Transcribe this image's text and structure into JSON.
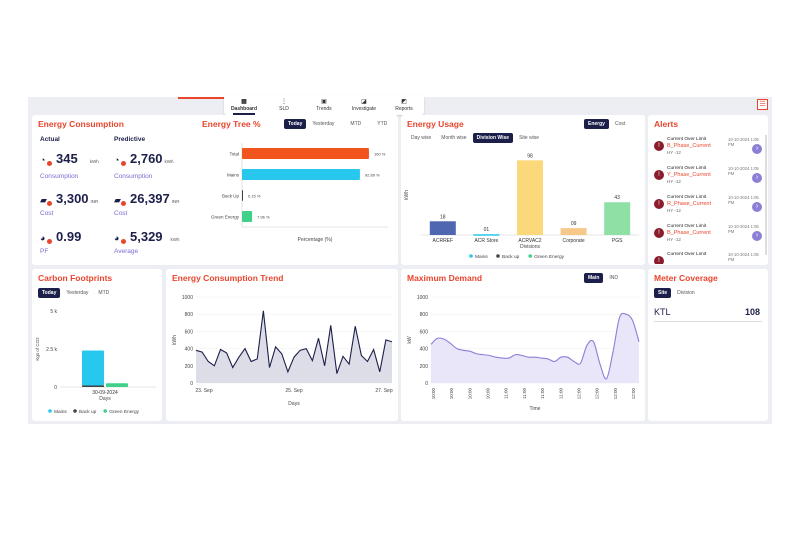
{
  "nav": [
    {
      "label": "Dashboard",
      "icon": "grid-icon",
      "active": true
    },
    {
      "label": "SLD",
      "icon": "sld-icon"
    },
    {
      "label": "Trends",
      "icon": "trends-icon"
    },
    {
      "label": "Investigate",
      "icon": "investigate-icon"
    },
    {
      "label": "Reports",
      "icon": "reports-icon"
    }
  ],
  "energy_consumption": {
    "title": "Energy Consumption",
    "actual_label": "Actual",
    "predictive_label": "Predictive",
    "actual": [
      {
        "value": "345",
        "unit": "kWh",
        "label": "Consumption"
      },
      {
        "value": "3,300",
        "unit": "INR",
        "label": "Cost"
      },
      {
        "value": "0.99",
        "unit": "",
        "label": "PF"
      }
    ],
    "predictive": [
      {
        "value": "2,760",
        "unit": "kWh",
        "label": "Consumption"
      },
      {
        "value": "26,397",
        "unit": "INR",
        "label": "Cost"
      },
      {
        "value": "5,329",
        "unit": "kWh",
        "label": "Average"
      }
    ]
  },
  "energy_tree": {
    "title": "Energy Tree %",
    "tabs": [
      "Today",
      "Yesterday",
      "MTD",
      "YTD"
    ],
    "active_tab": "Today",
    "xlabel": "Percentage (%)"
  },
  "energy_usage": {
    "title": "Energy Usage",
    "toggle": [
      "Energy",
      "Cost"
    ],
    "tabs": [
      "Day wise",
      "Month wise",
      "Division Wise",
      "Site wise"
    ],
    "active_tab": "Division Wise",
    "ylabel": "kWh",
    "xlabel": "Divisions",
    "legend": [
      "Mains",
      "Back up",
      "Green Energy"
    ]
  },
  "alerts": {
    "title": "Alerts",
    "items": [
      {
        "type": "Current Over Limit",
        "name": "B_Phase_Current",
        "source": "HY -12",
        "time": "10-10-2024 1:05 PM"
      },
      {
        "type": "Current Over Limit",
        "name": "Y_Phase_Current",
        "source": "HY -12",
        "time": "10-10-2024 1:05 PM"
      },
      {
        "type": "Current Over Limit",
        "name": "R_Phase_Current",
        "source": "HY -12",
        "time": "10-10-2024 1:05 PM"
      },
      {
        "type": "Current Over Limit",
        "name": "B_Phase_Current",
        "source": "HY -12",
        "time": "10-10-2024 1:05 PM"
      },
      {
        "type": "Current Over Limit",
        "name": "",
        "source": "",
        "time": "10-10-2024 1:05 PM"
      }
    ]
  },
  "carbon": {
    "title": "Carbon Footprints",
    "tabs": [
      "Today",
      "Yesterday",
      "MTD"
    ],
    "active_tab": "Today",
    "ylabel": "Kgs of CO2",
    "xlabel": "Days",
    "legend": [
      "Mains",
      "Back up",
      "Green Energy"
    ]
  },
  "trend": {
    "title": "Energy Consumption Trend",
    "ylabel": "kWh",
    "xlabel": "Days"
  },
  "max_demand": {
    "title": "Maximum Demand",
    "toggle": [
      "Main",
      "IND"
    ],
    "ylabel": "kW",
    "xlabel": "Time"
  },
  "meter": {
    "title": "Meter Coverage",
    "tabs": [
      "Site",
      "Division"
    ],
    "active_tab": "Site",
    "site": "KTL",
    "count": "108"
  },
  "colors": {
    "accent": "#e8452c",
    "navy": "#1b1f4a",
    "mains": "#28c7ee",
    "backup": "#444444",
    "green": "#3fd08a",
    "purple": "#8b7fd6"
  },
  "chart_data": [
    {
      "type": "bar",
      "orientation": "horizontal",
      "title": "Energy Tree %",
      "categories": [
        "Total",
        "Mains",
        "Back Up",
        "Green Energy"
      ],
      "values": [
        100,
        92.89,
        0.15,
        7.96
      ],
      "value_labels": [
        "100 %",
        "92.89 %",
        "0.15 %",
        "7.96 %"
      ],
      "colors": [
        "#f2541d",
        "#28c7ee",
        "#444444",
        "#3fd08a"
      ],
      "xlabel": "Percentage (%)",
      "xlim": [
        0,
        115
      ]
    },
    {
      "type": "bar",
      "title": "Energy Usage",
      "categories": [
        "ACRREF",
        "ACR Store",
        "ACRVAC2",
        "Corporate",
        "PGS"
      ],
      "values": [
        18,
        1,
        98,
        9,
        43
      ],
      "value_labels": [
        "18",
        "01",
        "98",
        "09",
        "43"
      ],
      "colors": [
        "#4f66b0",
        "#28c7ee",
        "#fbd97a",
        "#f6c98a",
        "#8ee0a4"
      ],
      "xlabel": "Divisions",
      "ylabel": "kWh",
      "ylim": [
        0,
        105
      ]
    },
    {
      "type": "bar",
      "stacked": true,
      "title": "Carbon Footprints",
      "categories": [
        "30-09-2024"
      ],
      "series": [
        {
          "name": "Mains",
          "values": [
            2300
          ]
        },
        {
          "name": "Back up",
          "values": [
            100
          ]
        },
        {
          "name": "Green Energy",
          "values": [
            250
          ]
        }
      ],
      "yticks": [
        "0",
        "2.5 k",
        "5 k"
      ],
      "ylim": [
        0,
        5000
      ],
      "ylabel": "Kgs of CO2",
      "xlabel": "Days"
    },
    {
      "type": "area",
      "title": "Energy Consumption Trend",
      "xticks": [
        "23. Sep",
        "25. Sep",
        "27. Sep"
      ],
      "yticks": [
        0,
        200,
        400,
        600,
        800,
        1000
      ],
      "ylim": [
        0,
        1000
      ],
      "values": [
        380,
        360,
        250,
        200,
        390,
        350,
        180,
        300,
        400,
        250,
        280,
        840,
        180,
        420,
        340,
        130,
        300,
        380,
        400,
        260,
        520,
        200,
        670,
        110,
        310,
        220,
        660,
        320,
        250,
        390,
        130,
        500,
        480
      ],
      "ylabel": "kWh",
      "xlabel": "Days"
    },
    {
      "type": "area",
      "title": "Maximum Demand",
      "xticks": [
        "10:00",
        "10:00",
        "10:00",
        "10:00",
        "11:00",
        "11:00",
        "11:00",
        "11:00",
        "12:00",
        "12:00",
        "12:00",
        "12:00"
      ],
      "yticks": [
        0,
        200,
        400,
        600,
        800,
        1000
      ],
      "ylim": [
        0,
        1000
      ],
      "values": [
        450,
        520,
        510,
        460,
        400,
        380,
        370,
        340,
        330,
        320,
        300,
        290,
        290,
        330,
        320,
        300,
        300,
        290,
        280,
        250,
        300,
        300,
        250,
        230,
        440,
        480,
        220,
        50,
        360,
        760,
        800,
        730,
        480
      ],
      "ylabel": "kW",
      "xlabel": "Time"
    }
  ]
}
